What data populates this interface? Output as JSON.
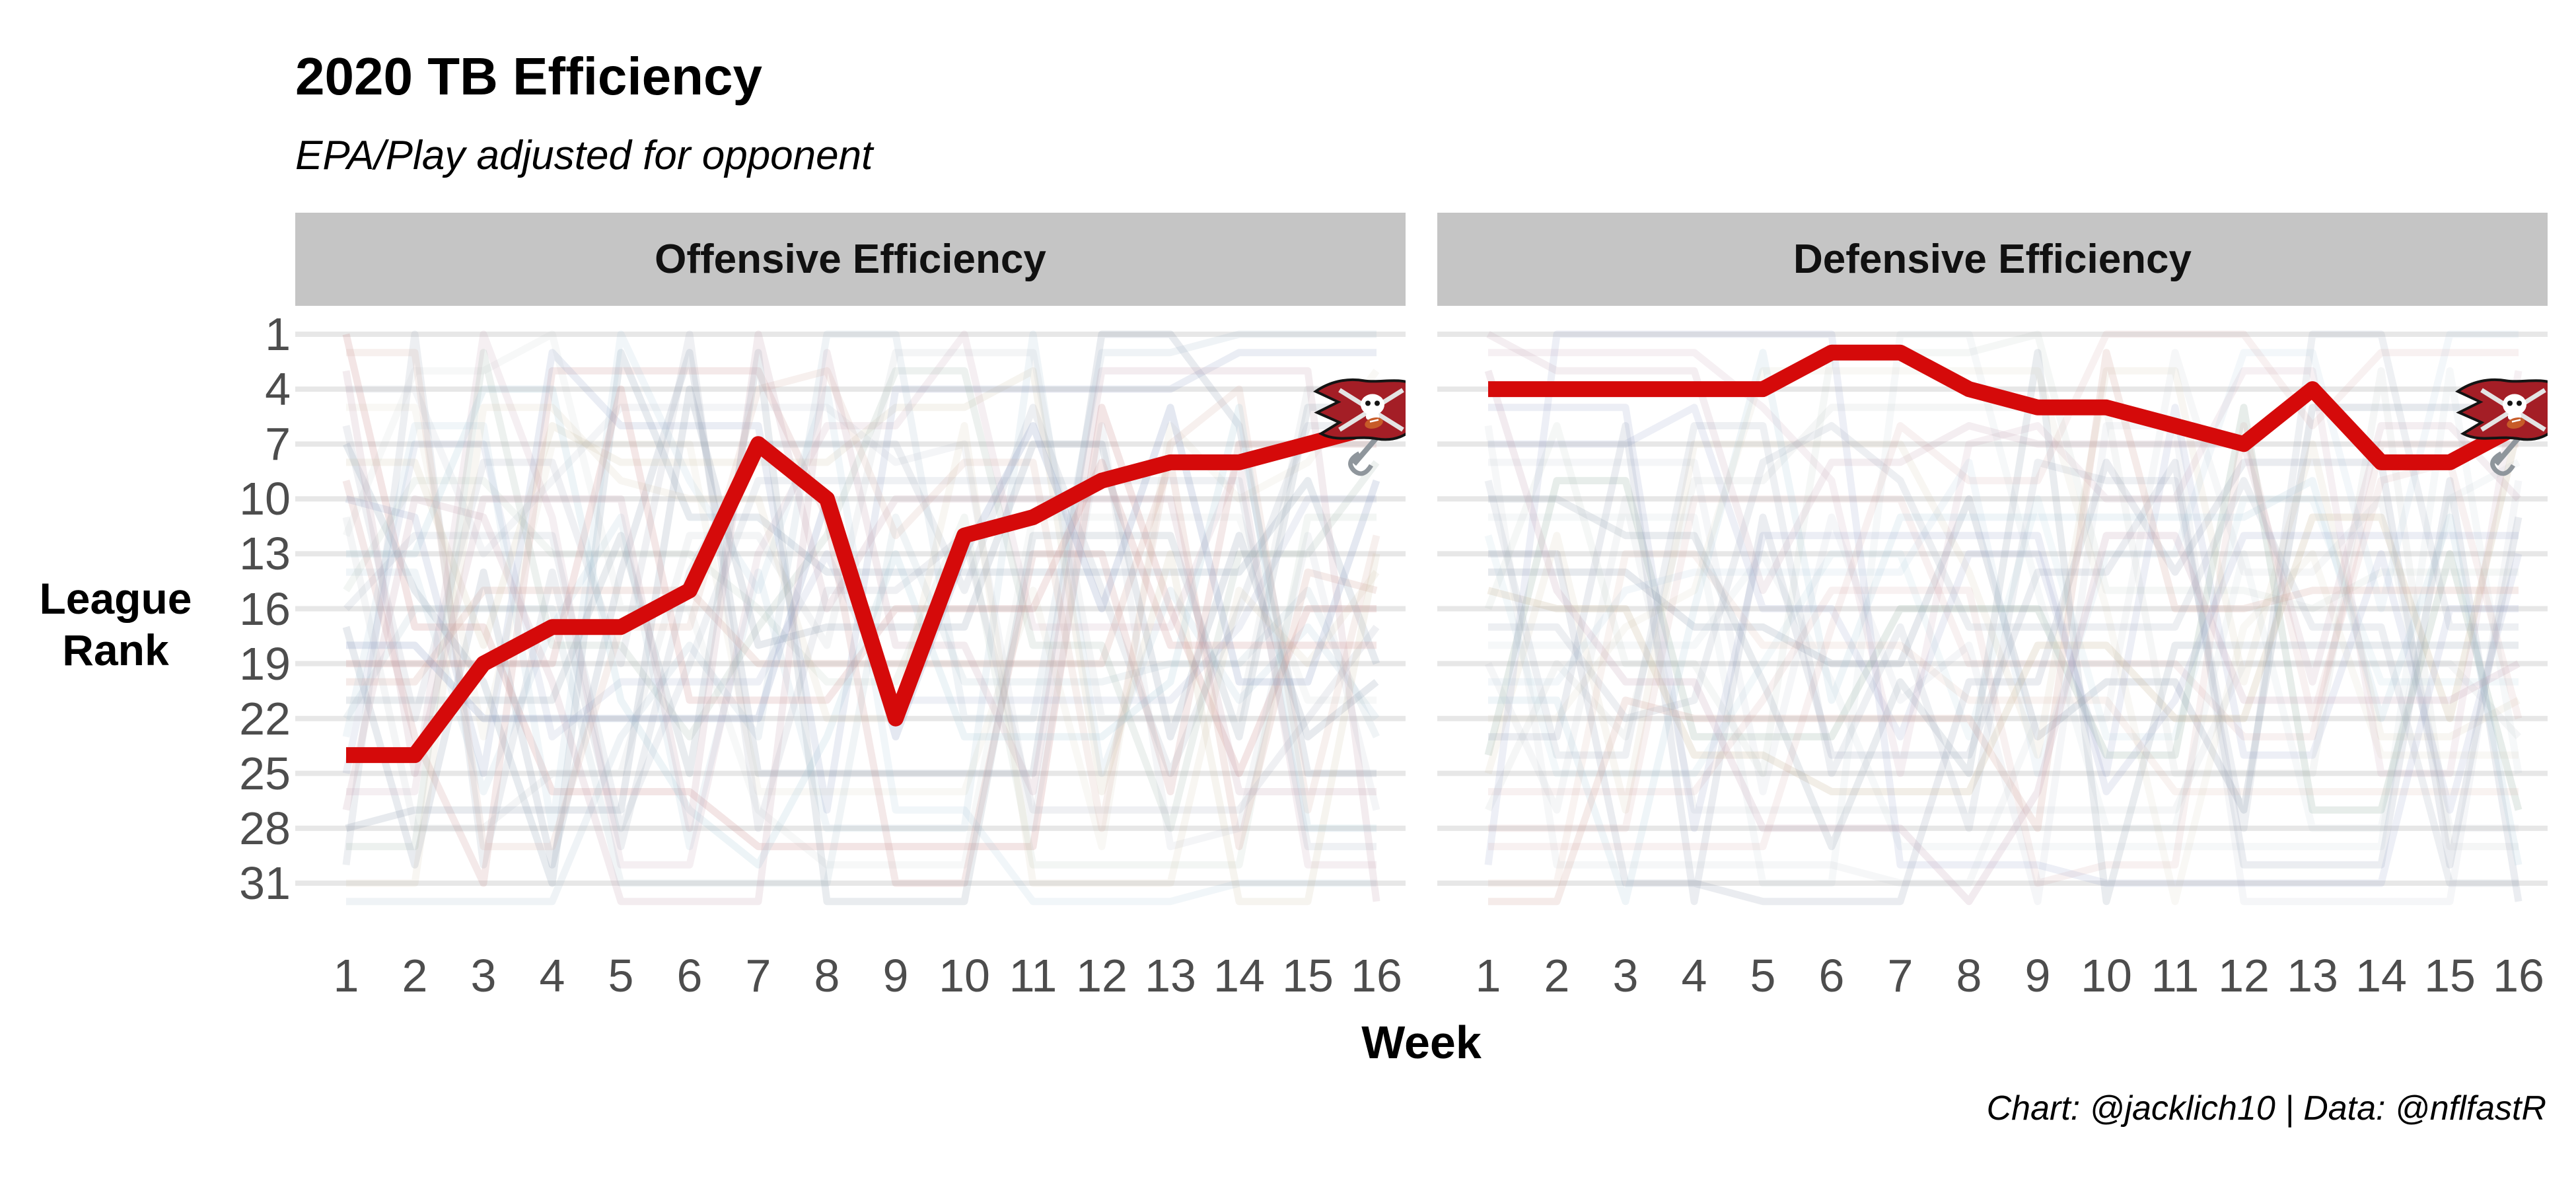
{
  "title": "2020 TB Efficiency",
  "subtitle": "EPA/Play adjusted for opponent",
  "caption": "Chart: @jacklich10 | Data: @nflfastR",
  "facets": [
    {
      "label": "Offensive Efficiency"
    },
    {
      "label": "Defensive Efficiency"
    }
  ],
  "x_axis": {
    "label": "Week",
    "ticks": [
      1,
      2,
      3,
      4,
      5,
      6,
      7,
      8,
      9,
      10,
      11,
      12,
      13,
      14,
      15,
      16
    ]
  },
  "y_axis": {
    "label": "League Rank",
    "label_lines": [
      "League",
      "Rank"
    ],
    "ticks": [
      1,
      4,
      7,
      10,
      13,
      16,
      19,
      22,
      25,
      28,
      31
    ]
  },
  "chart_data": {
    "type": "line",
    "title": "2020 TB Efficiency",
    "subtitle": "EPA/Play adjusted for opponent",
    "xlabel": "Week",
    "ylabel": "League Rank",
    "x": [
      1,
      2,
      3,
      4,
      5,
      6,
      7,
      8,
      9,
      10,
      11,
      12,
      13,
      14,
      15,
      16
    ],
    "ylim": [
      32,
      1
    ],
    "y_inverted": true,
    "grid": "horizontal-major-every-3-ranks",
    "legend": "none",
    "series": [
      {
        "name": "Tampa Bay offense",
        "facet": "Offensive Efficiency",
        "color": "#D50A0A",
        "endpoint_marker": "tampa-bay-buccaneers-logo",
        "values": [
          24,
          24,
          19,
          17,
          17,
          15,
          7,
          10,
          22,
          12,
          11,
          9,
          8,
          8,
          7,
          6
        ]
      },
      {
        "name": "Tampa Bay defense",
        "facet": "Defensive Efficiency",
        "color": "#D50A0A",
        "endpoint_marker": "tampa-bay-buccaneers-logo",
        "values": [
          4,
          4,
          4,
          4,
          4,
          2,
          2,
          4,
          5,
          5,
          6,
          7,
          4,
          8,
          8,
          6
        ]
      }
    ],
    "background_series_note": "31 faint unlabeled lines per facet showing the other NFL teams' weekly league ranks"
  },
  "style": {
    "accent_red": "#D50A0A",
    "logo_flag_red": "#A41E26",
    "strip_bg": "#C5C5C5",
    "grid_color": "#E7E7E7",
    "tick_color": "#4D4D4D",
    "bg_line_palette": [
      "#8E9AAF",
      "#AEB6C4",
      "#C98F8F",
      "#9FC2D6",
      "#C9BA9B",
      "#8C9BC4",
      "#C4A3B4",
      "#9BB3A6",
      "#B8BCC2",
      "#A9BBCB",
      "#D4ADA4",
      "#99A7B8"
    ],
    "bg_line_opacity_min": 0.1,
    "bg_line_opacity_max": 0.24,
    "bg_seed_offense": 20201,
    "bg_seed_defense": 20207
  }
}
